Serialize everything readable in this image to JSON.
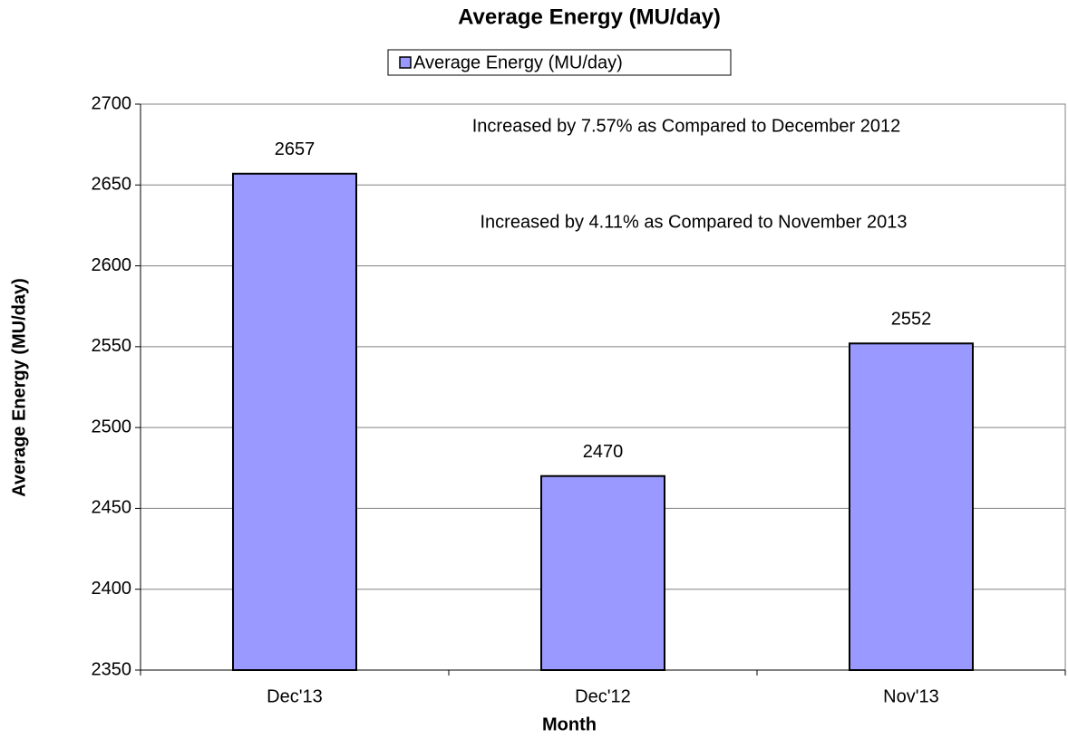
{
  "chart_data": {
    "type": "bar",
    "title": "Average Energy (MU/day)",
    "x_label": "Month",
    "y_label": "Average Energy (MU/day)",
    "categories": [
      "Dec'13",
      "Dec'12",
      "Nov'13"
    ],
    "series": [
      {
        "name": "Average Energy (MU/day)",
        "color": "#9999ff",
        "values": [
          2657,
          2470,
          2552
        ]
      }
    ],
    "annotations": [
      "Increased by 7.57% as Compared to December 2012",
      "Increased by 4.11% as Compared to November 2013"
    ],
    "ylim": [
      2350,
      2700
    ],
    "yticks": [
      2350,
      2400,
      2450,
      2500,
      2550,
      2600,
      2650,
      2700
    ],
    "grid": true,
    "legend": "top"
  }
}
